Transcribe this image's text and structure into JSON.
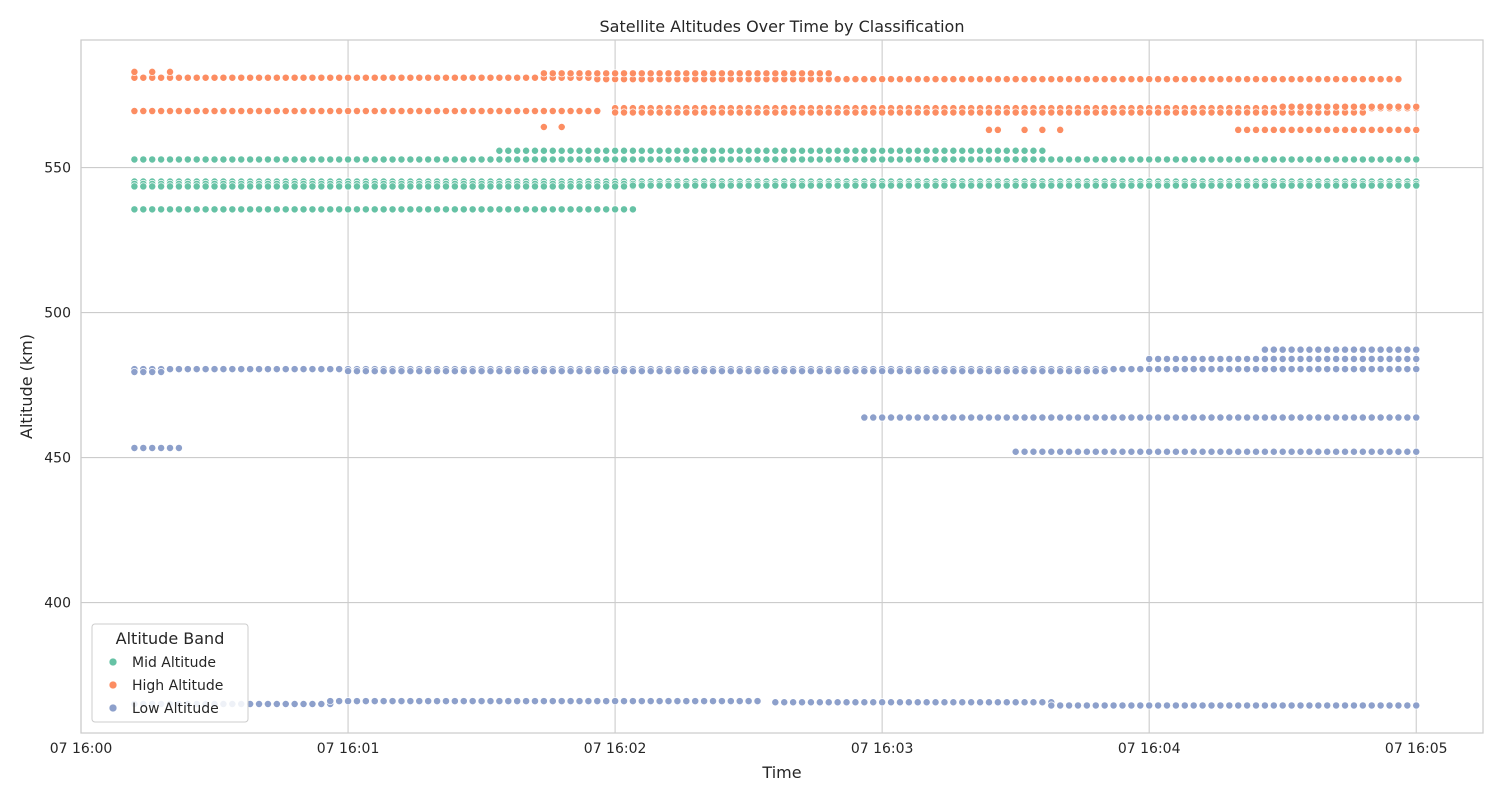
{
  "chart_data": {
    "type": "scatter",
    "title": "Satellite Altitudes Over Time by Classification",
    "xlabel": "Time",
    "ylabel": "Altitude (km)",
    "x_unit": "time (HH:MM:SS) on day 07",
    "xlim": [
      "16:00:00",
      "16:05:15"
    ],
    "ylim": [
      355,
      594
    ],
    "x_ticks": [
      "16:00:00",
      "16:01:00",
      "16:02:00",
      "16:03:00",
      "16:04:00",
      "16:05:00"
    ],
    "x_tick_labels": [
      "07 16:00",
      "07 16:01",
      "07 16:02",
      "07 16:03",
      "07 16:04",
      "07 16:05"
    ],
    "y_ticks": [
      400,
      450,
      500,
      550
    ],
    "y_tick_labels": [
      "400",
      "450",
      "500",
      "550"
    ],
    "grid": true,
    "legend": {
      "title": "Altitude Band",
      "position": "lower-left",
      "entries": [
        "Mid Altitude",
        "High Altitude",
        "Low Altitude"
      ]
    },
    "sample_interval_seconds": 2,
    "series": [
      {
        "name": "Mid Altitude",
        "color": "#66c2a5",
        "tracks": [
          {
            "start": "16:00:12",
            "end": "16:05:00",
            "altitude": 552.8
          },
          {
            "start": "16:00:12",
            "end": "16:05:00",
            "altitude": 545.2
          },
          {
            "start": "16:00:12",
            "end": "16:05:00",
            "altitude": 544.4
          },
          {
            "start": "16:00:12",
            "end": "16:02:04",
            "altitude": 543.5
          },
          {
            "start": "16:00:12",
            "end": "16:02:04",
            "altitude": 535.6
          },
          {
            "start": "16:01:34",
            "end": "16:03:36",
            "altitude": 555.8
          },
          {
            "start": "16:02:04",
            "end": "16:05:00",
            "altitude": 543.8
          }
        ]
      },
      {
        "name": "High Altitude",
        "color": "#fc8d62",
        "tracks": [
          {
            "start": "16:00:12",
            "end": "16:01:56",
            "altitude": 581.0
          },
          {
            "start": "16:01:56",
            "end": "16:04:56",
            "altitude": 580.5
          },
          {
            "start": "16:00:12",
            "end": "16:01:56",
            "altitude": 569.5
          },
          {
            "start": "16:02:00",
            "end": "16:05:00",
            "altitude": 570.5
          },
          {
            "start": "16:02:00",
            "end": "16:04:48",
            "altitude": 569.0
          },
          {
            "start": "16:01:44",
            "end": "16:02:48",
            "altitude": 582.5
          },
          {
            "start": "16:04:30",
            "end": "16:05:00",
            "altitude": 571.0
          },
          {
            "start": "16:04:20",
            "end": "16:05:00",
            "altitude": 563.0
          }
        ],
        "points": [
          {
            "time": "16:00:12",
            "altitude": 583.0
          },
          {
            "time": "16:00:16",
            "altitude": 583.0
          },
          {
            "time": "16:00:20",
            "altitude": 583.0
          },
          {
            "time": "16:01:44",
            "altitude": 564.0
          },
          {
            "time": "16:01:48",
            "altitude": 564.0
          },
          {
            "time": "16:03:24",
            "altitude": 563.0
          },
          {
            "time": "16:03:26",
            "altitude": 563.0
          },
          {
            "time": "16:03:32",
            "altitude": 563.0
          },
          {
            "time": "16:03:36",
            "altitude": 563.0
          },
          {
            "time": "16:03:40",
            "altitude": 563.0
          }
        ]
      },
      {
        "name": "Low Altitude",
        "color": "#8da0cb",
        "tracks": [
          {
            "start": "16:00:12",
            "end": "16:05:00",
            "altitude": 480.5
          },
          {
            "start": "16:00:12",
            "end": "16:00:18",
            "altitude": 479.5
          },
          {
            "start": "16:00:12",
            "end": "16:00:22",
            "altitude": 453.3
          },
          {
            "start": "16:01:00",
            "end": "16:03:50",
            "altitude": 479.8
          },
          {
            "start": "16:02:56",
            "end": "16:05:00",
            "altitude": 463.8
          },
          {
            "start": "16:03:30",
            "end": "16:05:00",
            "altitude": 452.0
          },
          {
            "start": "16:04:00",
            "end": "16:05:00",
            "altitude": 484.0
          },
          {
            "start": "16:04:26",
            "end": "16:05:00",
            "altitude": 487.2
          },
          {
            "start": "16:00:12",
            "end": "16:00:56",
            "altitude": 365.0
          },
          {
            "start": "16:00:56",
            "end": "16:02:32",
            "altitude": 366.0
          },
          {
            "start": "16:02:36",
            "end": "16:03:38",
            "altitude": 365.6
          },
          {
            "start": "16:03:38",
            "end": "16:05:00",
            "altitude": 364.5
          }
        ]
      }
    ]
  }
}
